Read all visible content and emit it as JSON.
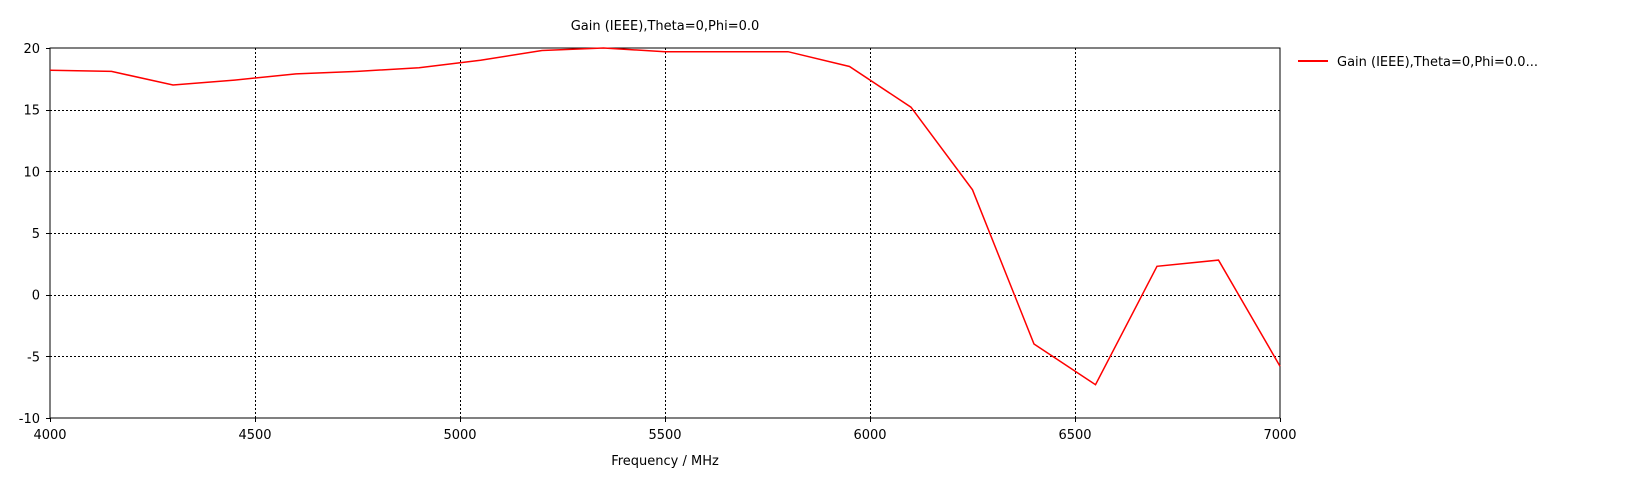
{
  "chart_data": {
    "type": "line",
    "title": "Gain (IEEE),Theta=0,Phi=0.0",
    "xlabel": "Frequency / MHz",
    "ylabel": "",
    "xlim": [
      4000,
      7000
    ],
    "ylim": [
      -10,
      20
    ],
    "xticks": [
      4000,
      4500,
      5000,
      5500,
      6000,
      6500,
      7000
    ],
    "yticks": [
      -10,
      -5,
      0,
      5,
      10,
      15,
      20
    ],
    "grid": true,
    "grid_style": "dotted",
    "legend_position": "right",
    "series": [
      {
        "name": "Gain (IEEE),Theta=0,Phi=0.0...",
        "color": "#ff0000",
        "x": [
          4000,
          4150,
          4300,
          4450,
          4600,
          4750,
          4900,
          5050,
          5200,
          5350,
          5500,
          5650,
          5800,
          5950,
          6100,
          6250,
          6400,
          6550,
          6700,
          6850,
          7000
        ],
        "y": [
          18.2,
          18.1,
          17.0,
          17.4,
          17.9,
          18.1,
          18.4,
          19.0,
          19.8,
          20.0,
          19.7,
          19.7,
          19.7,
          18.5,
          15.2,
          8.5,
          -4.0,
          -7.3,
          2.3,
          2.8,
          -5.8
        ]
      }
    ]
  }
}
